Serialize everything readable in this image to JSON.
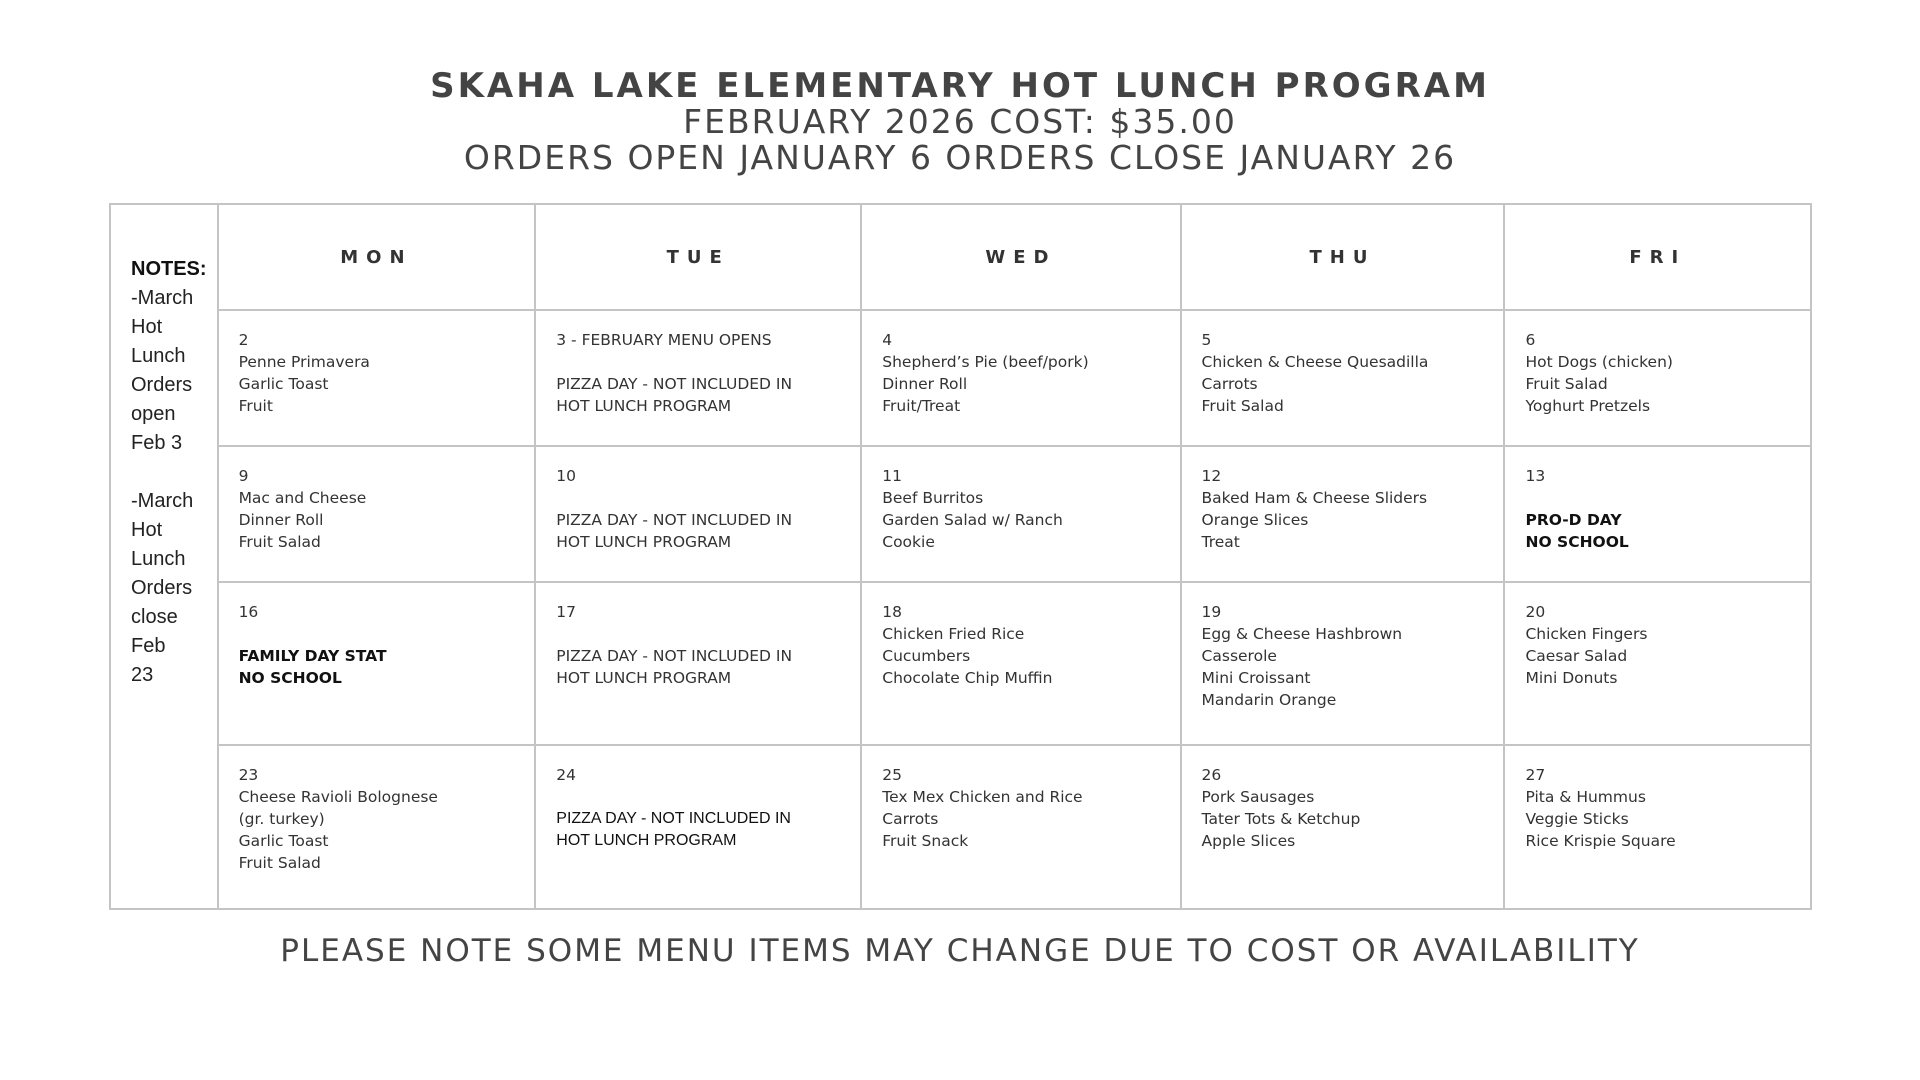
{
  "header": {
    "title": "SKAHA LAKE ELEMENTARY HOT LUNCH PROGRAM",
    "cost_line": "FEBRUARY 2026 COST: $35.00",
    "orders_line": "ORDERS OPEN JANUARY 6 ORDERS CLOSE JANUARY 26"
  },
  "notes": {
    "heading": "NOTES:",
    "lines": [
      "-March Hot",
      "Lunch",
      "Orders open",
      "Feb 3",
      "",
      "-March Hot",
      "Lunch",
      "Orders",
      "close Feb",
      "23"
    ]
  },
  "days": [
    "MON",
    "TUE",
    "WED",
    "THU",
    "FRI"
  ],
  "weeks": [
    [
      {
        "lines": [
          "2",
          "Penne Primavera",
          "Garlic Toast",
          "Fruit"
        ]
      },
      {
        "lines": [
          "3 - FEBRUARY MENU OPENS",
          "",
          "PIZZA DAY - NOT INCLUDED IN",
          "HOT LUNCH PROGRAM"
        ]
      },
      {
        "lines": [
          "4",
          "Shepherd’s Pie (beef/pork)",
          "Dinner Roll",
          "Fruit/Treat"
        ]
      },
      {
        "lines": [
          "5",
          "Chicken & Cheese Quesadilla",
          "Carrots",
          "Fruit Salad"
        ]
      },
      {
        "lines": [
          "6",
          "Hot Dogs (chicken)",
          "Fruit Salad",
          "Yoghurt Pretzels"
        ]
      }
    ],
    [
      {
        "lines": [
          "9",
          "Mac and Cheese",
          "Dinner Roll",
          "Fruit Salad"
        ]
      },
      {
        "lines": [
          "10",
          "",
          "PIZZA DAY - NOT INCLUDED IN",
          "HOT LUNCH PROGRAM"
        ]
      },
      {
        "lines": [
          "11",
          "Beef Burritos",
          "Garden Salad w/ Ranch",
          "Cookie"
        ]
      },
      {
        "lines": [
          "12",
          "Baked Ham & Cheese Sliders",
          "Orange Slices",
          "Treat"
        ]
      },
      {
        "lines": [
          "13",
          "",
          "PRO-D DAY",
          "NO SCHOOL"
        ],
        "bold_from": 2
      }
    ],
    [
      {
        "lines": [
          "16",
          "",
          "FAMILY DAY STAT",
          "NO SCHOOL"
        ],
        "bold_from": 2
      },
      {
        "lines": [
          "17",
          "",
          "PIZZA DAY - NOT INCLUDED IN",
          "HOT LUNCH PROGRAM"
        ]
      },
      {
        "lines": [
          "18",
          "Chicken Fried Rice",
          "Cucumbers",
          "Chocolate Chip Muffin"
        ]
      },
      {
        "lines": [
          "19",
          "Egg & Cheese Hashbrown",
          "Casserole",
          "Mini Croissant",
          "Mandarin Orange"
        ]
      },
      {
        "lines": [
          "20",
          "Chicken Fingers",
          "Caesar Salad",
          "Mini Donuts"
        ]
      }
    ],
    [
      {
        "lines": [
          "23",
          "Cheese Ravioli Bolognese",
          "(gr. turkey)",
          "Garlic Toast",
          "Fruit Salad"
        ]
      },
      {
        "lines": [
          "24",
          "",
          "PIZZA DAY - NOT INCLUDED IN",
          "HOT LUNCH PROGRAM"
        ],
        "dark_from": 2
      },
      {
        "lines": [
          "25",
          "Tex Mex Chicken and Rice",
          "Carrots",
          "Fruit Snack"
        ]
      },
      {
        "lines": [
          "26",
          "Pork Sausages",
          "Tater Tots & Ketchup",
          "Apple Slices"
        ]
      },
      {
        "lines": [
          "27",
          "Pita & Hummus",
          "Veggie Sticks",
          "Rice Krispie Square"
        ]
      }
    ]
  ],
  "footer": "PLEASE NOTE SOME MENU ITEMS MAY CHANGE DUE TO COST OR AVAILABILITY"
}
